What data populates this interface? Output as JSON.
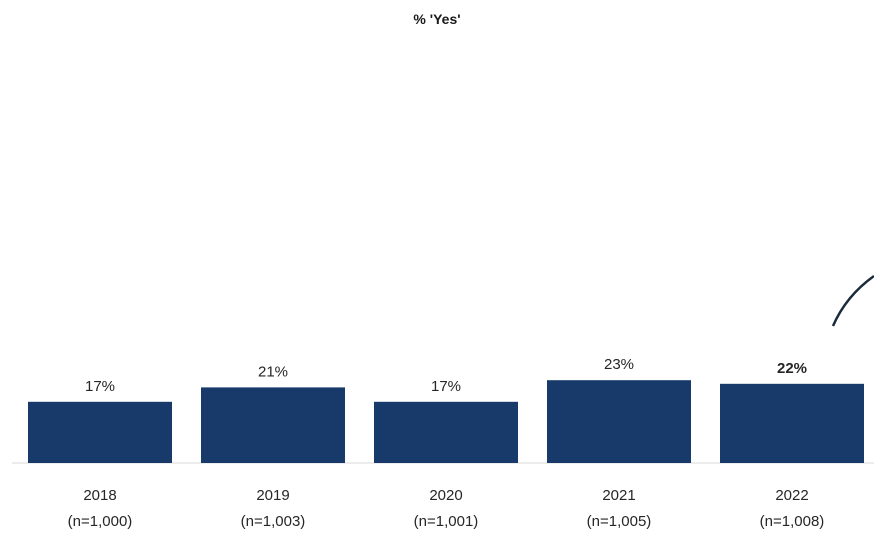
{
  "chart_data": {
    "type": "bar",
    "title": "% 'Yes'",
    "categories": [
      "2018",
      "2019",
      "2020",
      "2021",
      "2022"
    ],
    "sample_sizes": [
      "(n=1,000)",
      "(n=1,003)",
      "(n=1,001)",
      "(n=1,005)",
      "(n=1,008)"
    ],
    "values": [
      17,
      21,
      17,
      23,
      22
    ],
    "value_labels": [
      "17%",
      "21%",
      "17%",
      "23%",
      "22%"
    ],
    "highlight_index": 4,
    "bar_color": "#173a6b",
    "grid": false,
    "legend": "none"
  }
}
